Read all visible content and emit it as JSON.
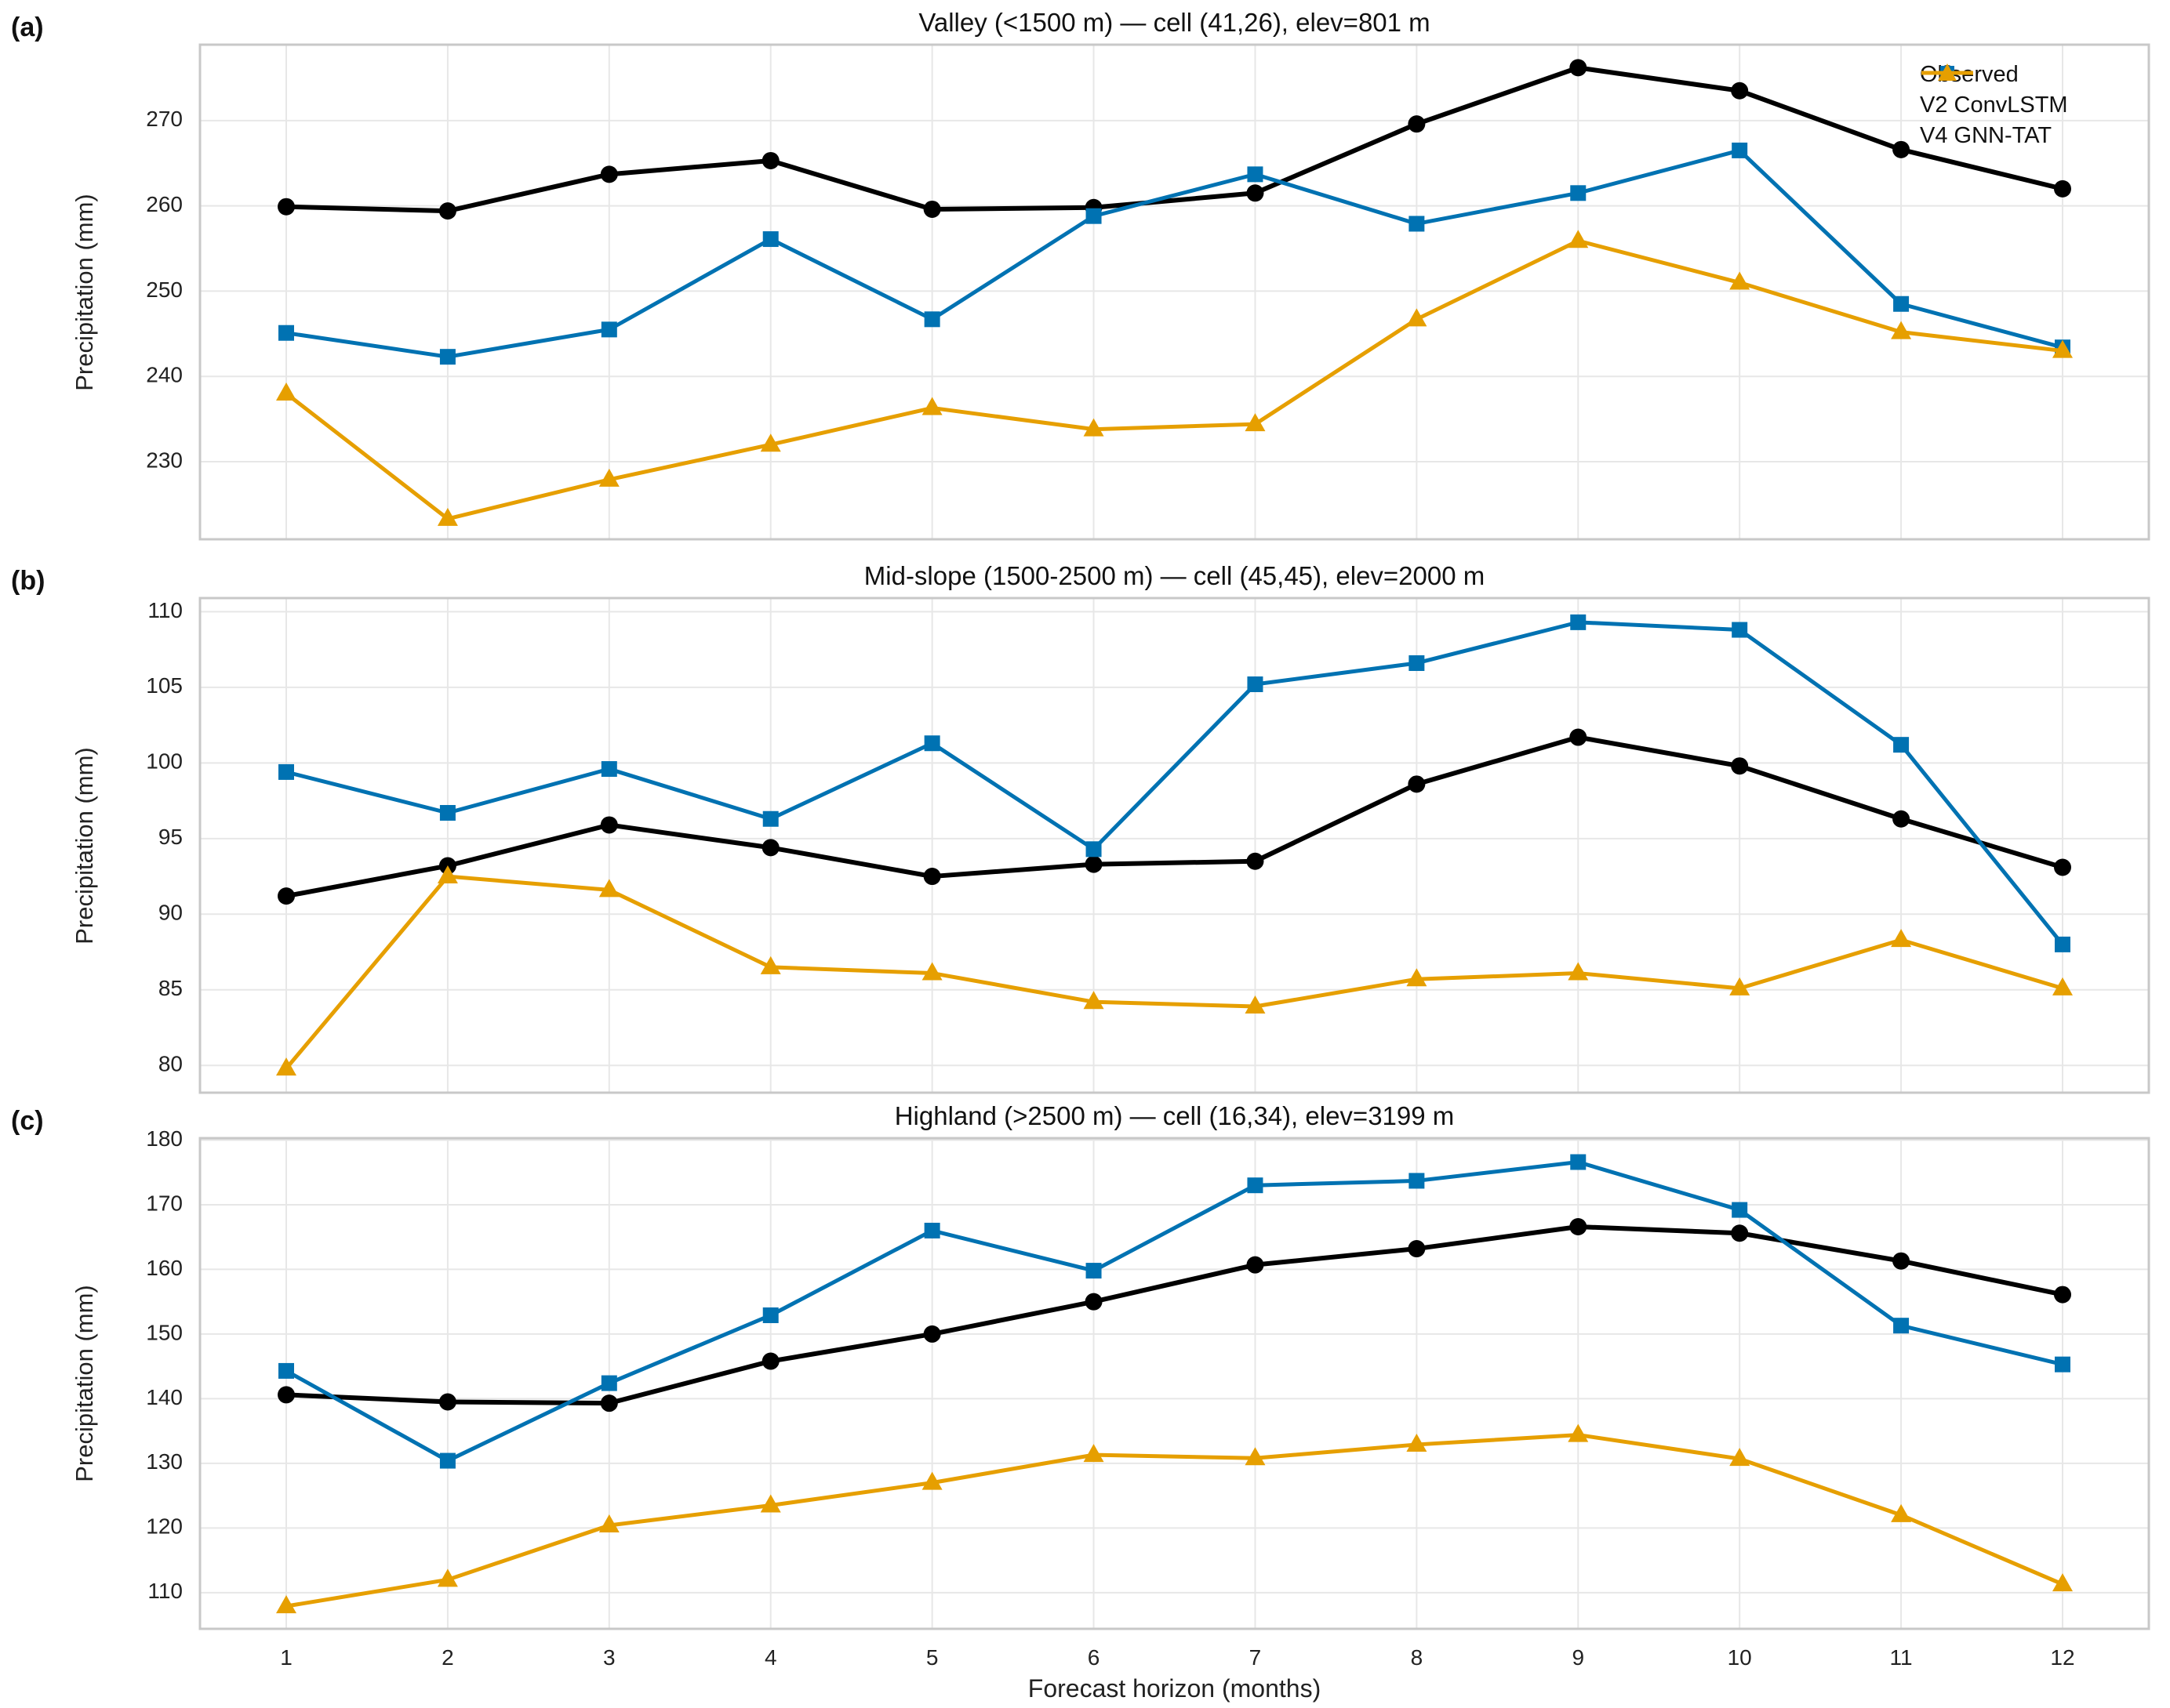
{
  "figure": {
    "xlabel": "Forecast horizon (months)",
    "ylabel": "Precipitation (mm)",
    "x_categories": [
      "1",
      "2",
      "3",
      "4",
      "5",
      "6",
      "7",
      "8",
      "9",
      "10",
      "11",
      "12"
    ],
    "background_color": "#ffffff",
    "grid_color": "#e7e7e7",
    "border_color": "#c8c8c8",
    "legend": [
      {
        "label": "Observed",
        "color": "#000000",
        "marker": "circle"
      },
      {
        "label": "V2 ConvLSTM",
        "color": "#0072b2",
        "marker": "square"
      },
      {
        "label": "V4 GNN-TAT",
        "color": "#e69f00",
        "marker": "triangle"
      }
    ]
  },
  "chart_data": [
    {
      "type": "line",
      "panel_label": "(a)",
      "title": "Valley (<1500 m) — cell (41,26), elev=801 m",
      "x": [
        1,
        2,
        3,
        4,
        5,
        6,
        7,
        8,
        9,
        10,
        11,
        12
      ],
      "xlabel": "Forecast horizon (months)",
      "ylabel": "Precipitation (mm)",
      "ylim": [
        220.9,
        278.9
      ],
      "yticks": [
        230,
        240,
        250,
        260,
        270
      ],
      "grid": true,
      "legend_position": "upper right",
      "series": [
        {
          "name": "Observed",
          "color": "#000000",
          "marker": "circle",
          "values": [
            259.9,
            259.4,
            263.7,
            265.3,
            259.6,
            259.8,
            261.5,
            269.6,
            276.2,
            273.5,
            266.6,
            262.0
          ]
        },
        {
          "name": "V2 ConvLSTM",
          "color": "#0072b2",
          "marker": "square",
          "values": [
            245.1,
            242.3,
            245.5,
            256.1,
            246.7,
            258.8,
            263.7,
            257.9,
            261.5,
            266.5,
            248.5,
            243.4
          ]
        },
        {
          "name": "V4 GNN-TAT",
          "color": "#e69f00",
          "marker": "triangle",
          "values": [
            238.0,
            223.3,
            227.9,
            232.0,
            236.3,
            233.8,
            234.4,
            246.7,
            255.9,
            251.0,
            245.2,
            243.0
          ]
        }
      ]
    },
    {
      "type": "line",
      "panel_label": "(b)",
      "title": "Mid-slope (1500-2500 m) — cell (45,45), elev=2000 m",
      "x": [
        1,
        2,
        3,
        4,
        5,
        6,
        7,
        8,
        9,
        10,
        11,
        12
      ],
      "xlabel": "Forecast horizon (months)",
      "ylabel": "Precipitation (mm)",
      "ylim": [
        78.2,
        110.9
      ],
      "yticks": [
        80,
        85,
        90,
        95,
        100,
        105,
        110
      ],
      "grid": true,
      "legend_position": "none",
      "series": [
        {
          "name": "Observed",
          "color": "#000000",
          "marker": "circle",
          "values": [
            91.2,
            93.2,
            95.9,
            94.4,
            92.5,
            93.3,
            93.5,
            98.6,
            101.7,
            99.8,
            96.3,
            93.1
          ]
        },
        {
          "name": "V2 ConvLSTM",
          "color": "#0072b2",
          "marker": "square",
          "values": [
            99.4,
            96.7,
            99.6,
            96.3,
            101.3,
            94.3,
            105.2,
            106.6,
            109.3,
            108.8,
            101.2,
            88.0
          ]
        },
        {
          "name": "V4 GNN-TAT",
          "color": "#e69f00",
          "marker": "triangle",
          "values": [
            79.8,
            92.5,
            91.6,
            86.5,
            86.1,
            84.2,
            83.9,
            85.7,
            86.1,
            85.1,
            88.3,
            85.1
          ]
        }
      ]
    },
    {
      "type": "line",
      "panel_label": "(c)",
      "title": "Highland (>2500 m) — cell (16,34), elev=3199 m",
      "x": [
        1,
        2,
        3,
        4,
        5,
        6,
        7,
        8,
        9,
        10,
        11,
        12
      ],
      "xlabel": "Forecast horizon (months)",
      "ylabel": "Precipitation (mm)",
      "ylim": [
        104.4,
        180.3
      ],
      "yticks": [
        110,
        120,
        130,
        140,
        150,
        160,
        170,
        180
      ],
      "grid": true,
      "legend_position": "none",
      "series": [
        {
          "name": "Observed",
          "color": "#000000",
          "marker": "circle",
          "values": [
            140.6,
            139.5,
            139.3,
            145.8,
            150.0,
            155.0,
            160.7,
            163.2,
            166.6,
            165.6,
            161.3,
            156.1
          ]
        },
        {
          "name": "V2 ConvLSTM",
          "color": "#0072b2",
          "marker": "square",
          "values": [
            144.3,
            130.4,
            142.4,
            152.9,
            166.0,
            159.8,
            173.0,
            173.7,
            176.6,
            169.2,
            151.3,
            145.3
          ]
        },
        {
          "name": "V4 GNN-TAT",
          "color": "#e69f00",
          "marker": "triangle",
          "values": [
            107.9,
            112.0,
            120.4,
            123.5,
            127.0,
            131.3,
            130.8,
            132.9,
            134.4,
            130.7,
            122.0,
            111.3
          ]
        }
      ]
    }
  ]
}
